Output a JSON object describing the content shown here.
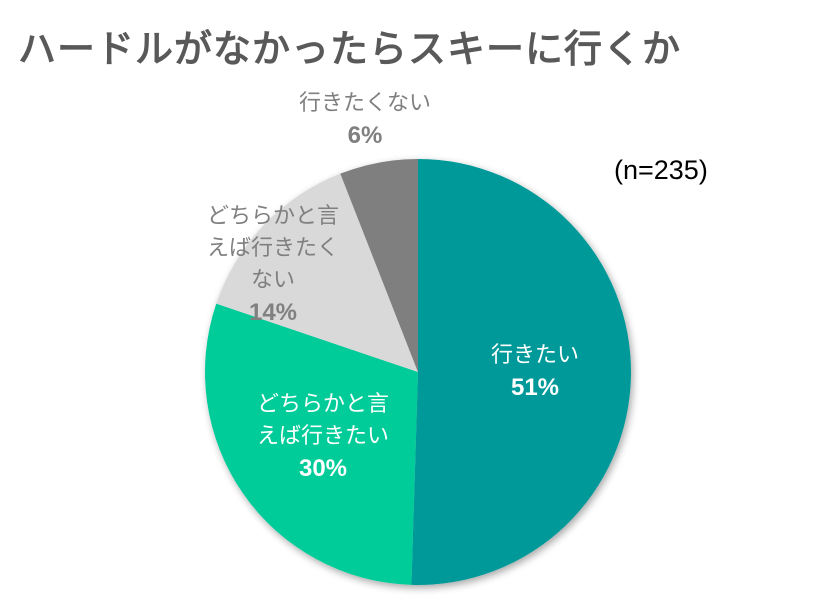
{
  "title": "ハードルがなかったらスキーに行くか",
  "sample_note": "(n=235)",
  "chart_data": {
    "type": "pie",
    "title": "ハードルがなかったらスキーに行くか",
    "subtitle": "(n=235)",
    "categories": [
      "行きたい",
      "どちらかと言えば行きたい",
      "どちらかと言えば行きたくない",
      "行きたくない"
    ],
    "values": [
      51,
      30,
      14,
      6
    ],
    "unit": "%",
    "colors": [
      "#009999",
      "#00CC99",
      "#D9D9D9",
      "#7F7F7F"
    ],
    "start_angle": "12 o'clock",
    "direction": "clockwise",
    "legend": "none (data labels on slices)"
  },
  "labels": [
    {
      "lines": [
        "行きたい"
      ],
      "pct": "51%"
    },
    {
      "lines": [
        "どちらかと言",
        "えば行きたい"
      ],
      "pct": "30%"
    },
    {
      "lines": [
        "どちらかと言",
        "えば行きたく",
        "ない"
      ],
      "pct": "14%"
    },
    {
      "lines": [
        "行きたくない"
      ],
      "pct": "6%"
    }
  ]
}
